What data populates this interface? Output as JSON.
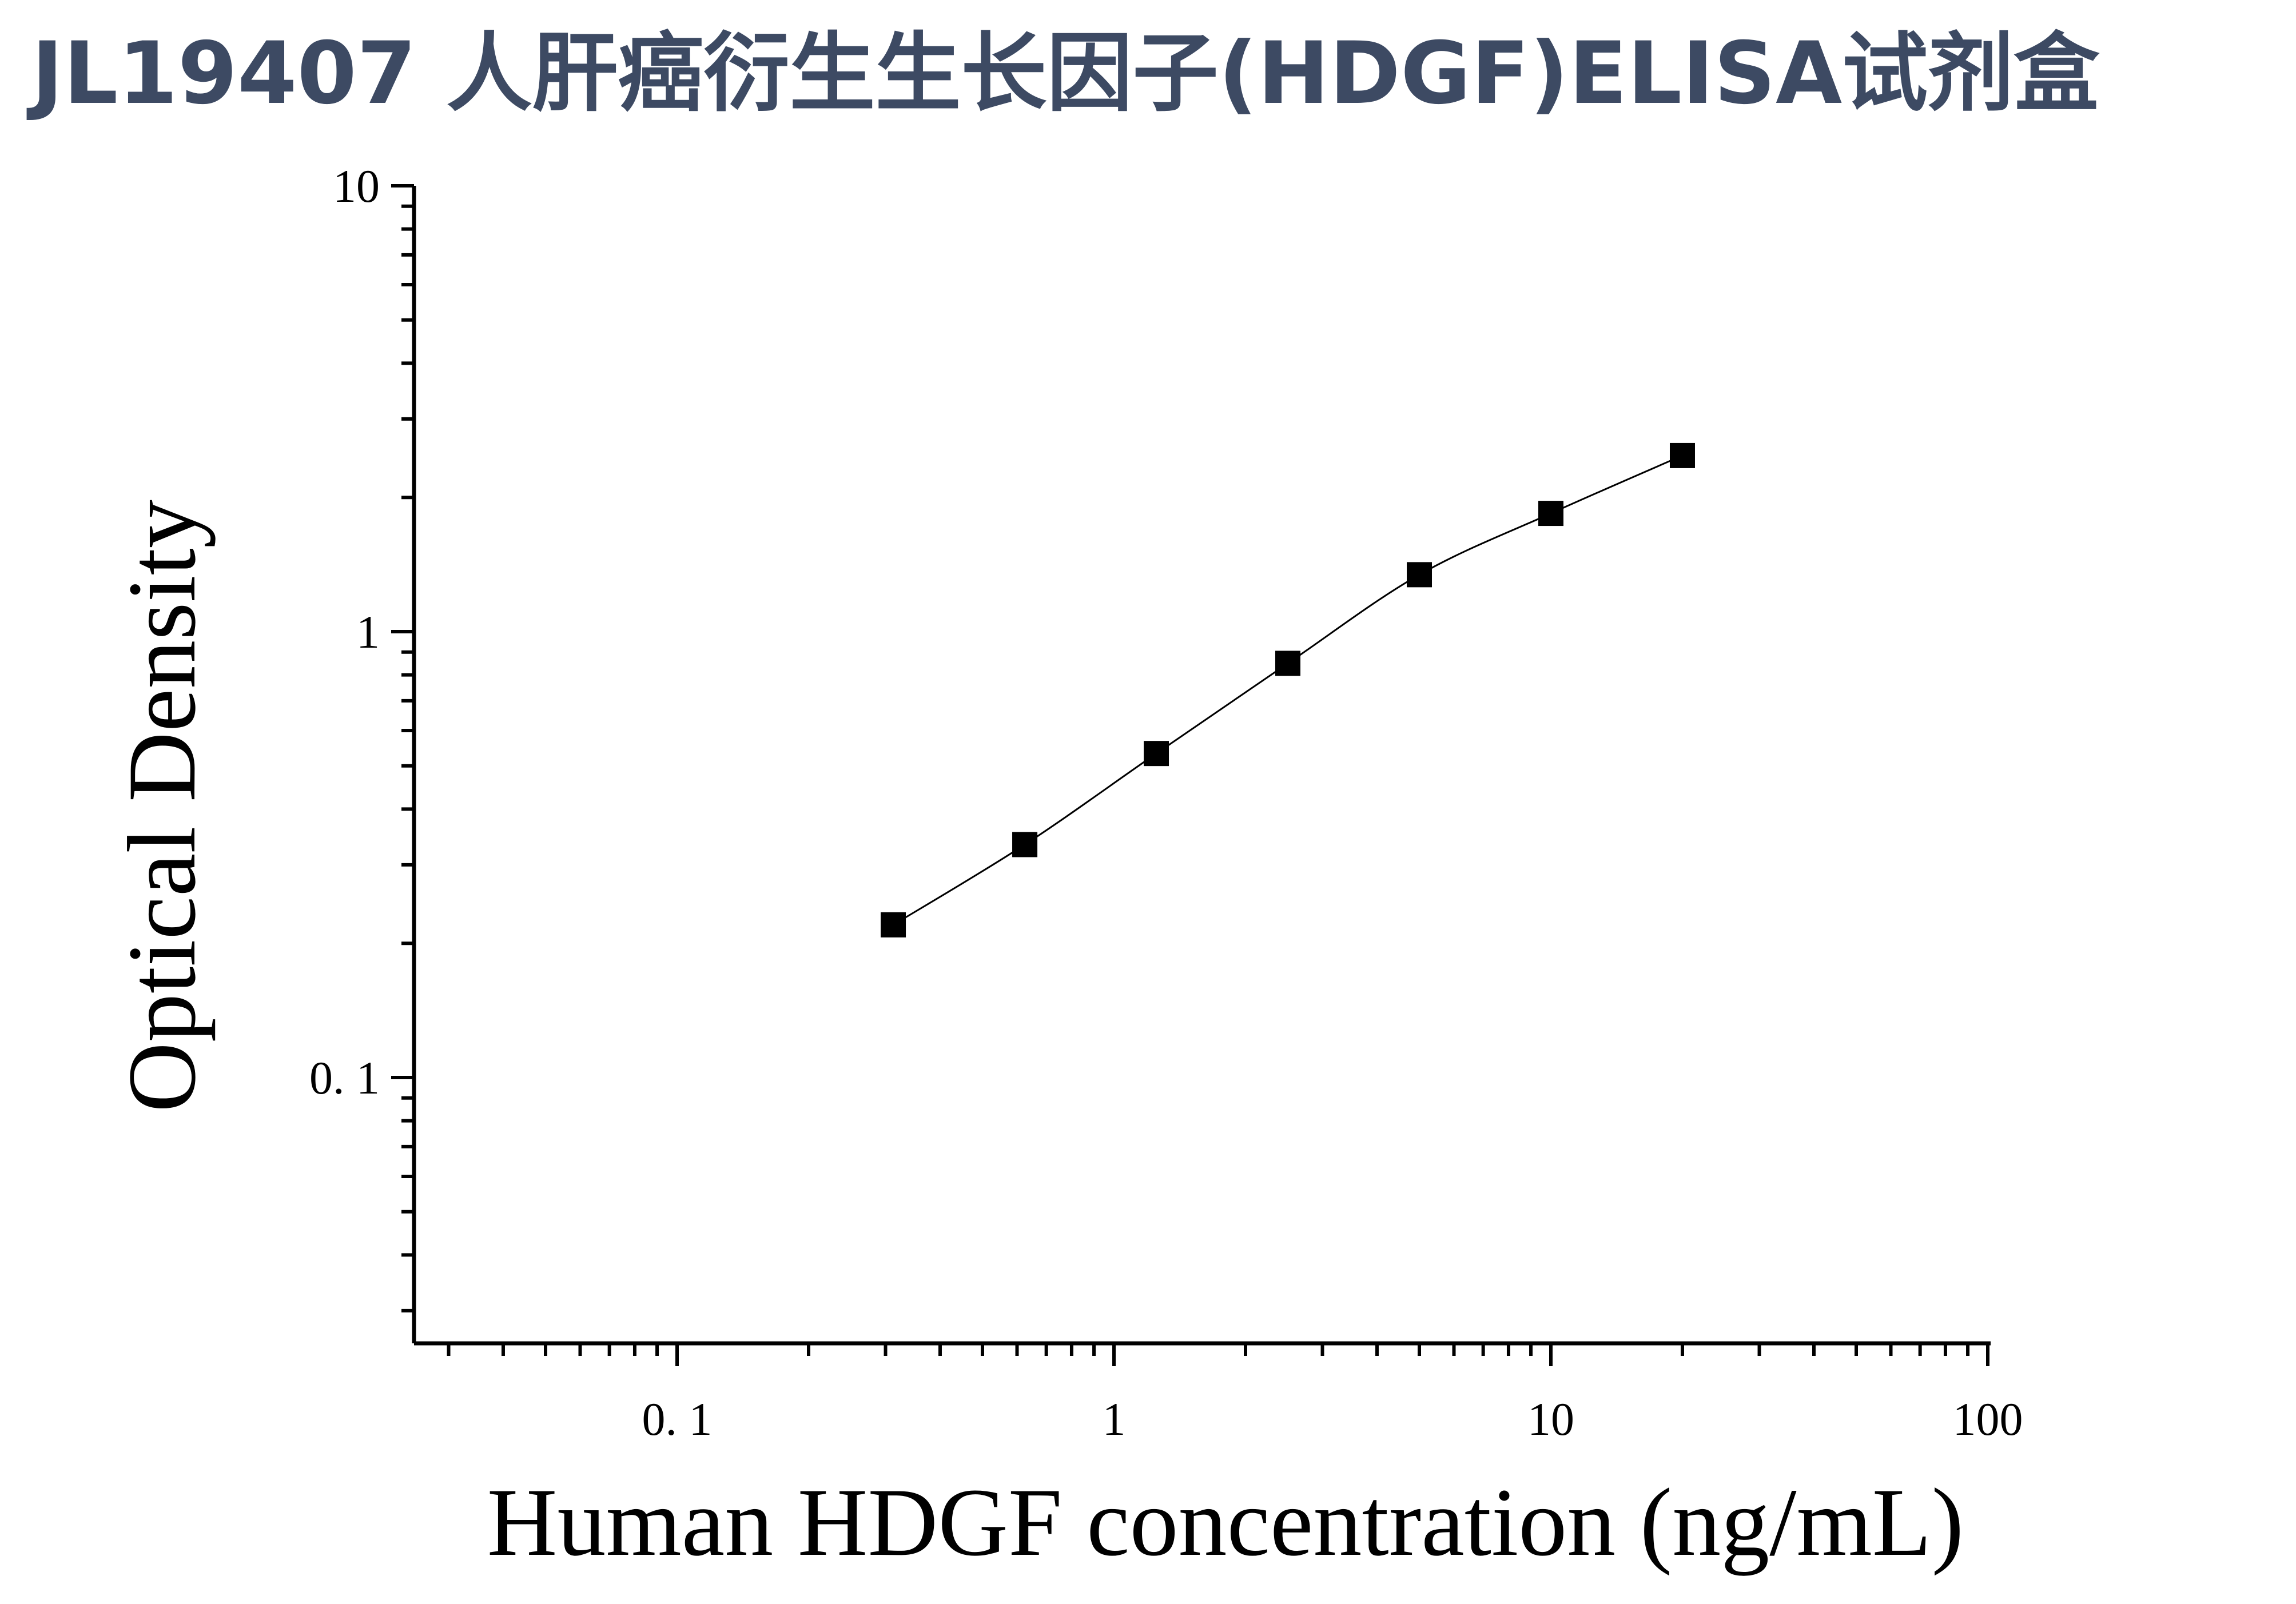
{
  "colors": {
    "title": "#3d4a63",
    "axis": "#000000",
    "marker": "#000000",
    "curve": "#000000",
    "background": "#ffffff"
  },
  "chart_data": {
    "type": "scatter",
    "title": "JL19407 人肝癌衍生生长因子(HDGF)ELISA试剂盒",
    "xlabel": "Human HDGF concentration (ng/mL)",
    "ylabel": "Optical Density",
    "x_scale": "log",
    "y_scale": "log",
    "xlim": [
      0.025,
      100
    ],
    "ylim": [
      0.025,
      10
    ],
    "x_tick_labels": [
      "0. 1",
      "1",
      "10",
      "100"
    ],
    "y_tick_labels": [
      "0. 1",
      "1",
      "10"
    ],
    "grid": false,
    "legend": "none",
    "series": [
      {
        "marker": "square",
        "fit": "smooth-curve",
        "x": [
          0.3125,
          0.625,
          1.25,
          2.5,
          5,
          10,
          20
        ],
        "y": [
          0.22,
          0.333,
          0.533,
          0.849,
          1.342,
          1.842,
          2.483
        ]
      }
    ]
  }
}
